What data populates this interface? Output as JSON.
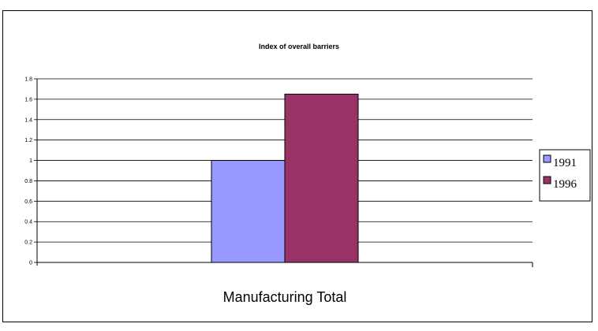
{
  "chart_data": {
    "type": "bar",
    "title": "Index of overall barriers",
    "categories": [
      "Manufacturing Total"
    ],
    "series": [
      {
        "name": "1991",
        "values": [
          1.0
        ],
        "color": "#9999FF"
      },
      {
        "name": "1996",
        "values": [
          1.65
        ],
        "color": "#993366"
      }
    ],
    "yticks": [
      "0",
      "0.2",
      "0.4",
      "0.6",
      "0.8",
      "1",
      "1.2",
      "1.4",
      "1.6",
      "1.8"
    ],
    "ylim": [
      0,
      1.8
    ],
    "xlabel": "",
    "ylabel": "",
    "grid": true,
    "legend_position": "right"
  }
}
